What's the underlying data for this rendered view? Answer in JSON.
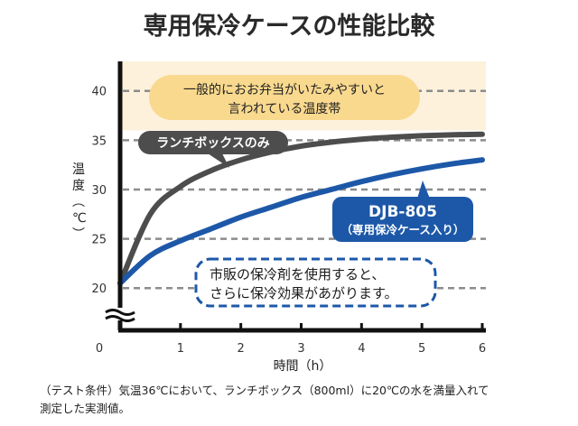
{
  "chart_data": {
    "type": "line",
    "title": "専用保冷ケースの性能比較",
    "xlabel": "時間（h）",
    "ylabel": "温度（℃）",
    "x": [
      0,
      0.5,
      1,
      1.5,
      2,
      2.5,
      3,
      3.5,
      4,
      4.5,
      5,
      5.5,
      6
    ],
    "xticks": [
      "0",
      "1",
      "2",
      "3",
      "4",
      "5",
      "6"
    ],
    "yticks": [
      "20",
      "25",
      "30",
      "35",
      "40"
    ],
    "xlim": [
      0,
      6
    ],
    "ylim": [
      17,
      44
    ],
    "series": [
      {
        "name": "ランチボックスのみ",
        "color": "#4d4d4d",
        "values": [
          20.5,
          27.5,
          30.3,
          31.9,
          33.0,
          33.8,
          34.4,
          34.8,
          35.1,
          35.3,
          35.45,
          35.55,
          35.6
        ]
      },
      {
        "name": "DJB-805（専用保冷ケース入り）",
        "color": "#1d58a8",
        "values": [
          20.5,
          23.3,
          24.8,
          26.0,
          27.2,
          28.2,
          29.2,
          30.0,
          30.8,
          31.5,
          32.1,
          32.6,
          33.0
        ]
      }
    ],
    "band": {
      "from": 36,
      "label_line1": "一般的におお弁当がいたみやすいと",
      "label_line2": "言われている温度帯"
    },
    "annotations": {
      "series1_label": "ランチボックスのみ",
      "series2_label_line1": "DJB-805",
      "series2_label_line2": "（専用保冷ケース入り）",
      "callout_line1": "市販の保冷剤を使用すると、",
      "callout_line2": "さらに保冷効果があがります。"
    },
    "footnote_line1": "（テスト条件）気温36℃において、ランチボックス（800ml）に20℃の水を満量入れて",
    "footnote_line2": "測定した実測値。",
    "colors": {
      "band": "#fdf1dc",
      "bubble": "#f9d98e",
      "grid": "#8c8c8c",
      "axis": "#111111"
    }
  }
}
